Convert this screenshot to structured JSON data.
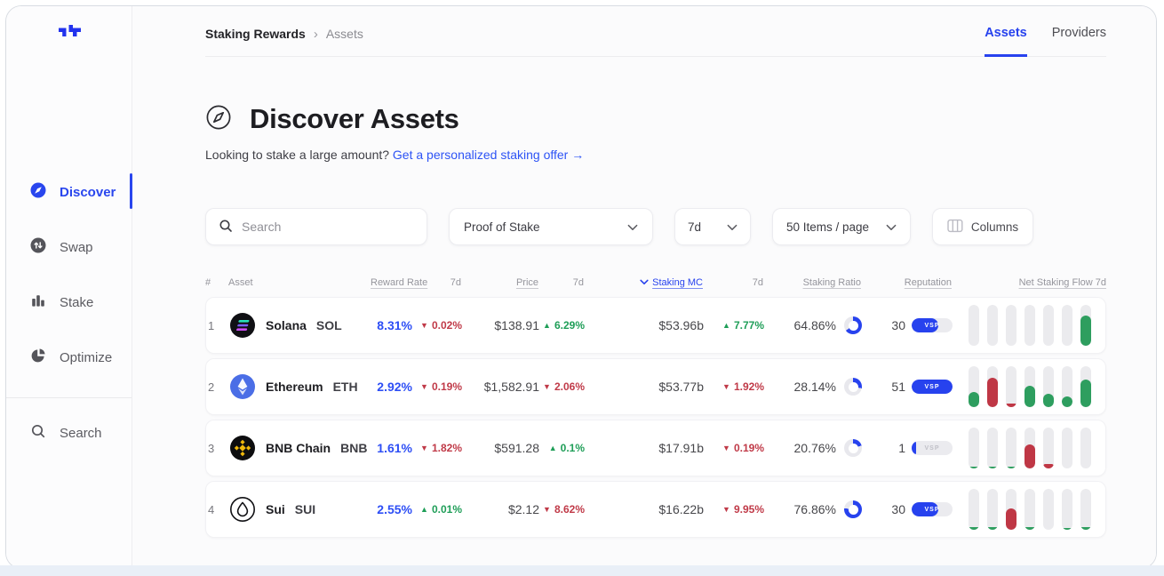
{
  "brand": {
    "logo_icon": "staking-rewards-logo",
    "accent": "#2742ee"
  },
  "colors": {
    "accent": "#2742ee",
    "positive": "#2e9e5f",
    "negative": "#bf3745",
    "ring_track": "#e8e8ed",
    "link": "#2d53f5"
  },
  "sidebar": {
    "items": [
      {
        "label": "Discover",
        "icon": "compass-icon",
        "active": true
      },
      {
        "label": "Swap",
        "icon": "swap-icon",
        "active": false
      },
      {
        "label": "Stake",
        "icon": "stake-icon",
        "active": false
      },
      {
        "label": "Optimize",
        "icon": "optimize-icon",
        "active": false
      },
      {
        "label": "Search",
        "icon": "search-icon",
        "active": false
      }
    ]
  },
  "header": {
    "breadcrumb": {
      "root": "Staking Rewards",
      "separator": "›",
      "current": "Assets"
    },
    "tabs": [
      {
        "label": "Assets",
        "active": true
      },
      {
        "label": "Providers",
        "active": false
      }
    ]
  },
  "hero": {
    "icon": "compass-outline-icon",
    "title": "Discover Assets",
    "subtitle": "Looking to stake a large amount?",
    "subtitle_link": "Get a personalized staking offer →"
  },
  "filters": {
    "search": {
      "placeholder": "Search",
      "icon": "search-icon"
    },
    "protocol_select": {
      "value": "Proof of Stake"
    },
    "period_select": {
      "value": "7d"
    },
    "page_size_select": {
      "value": "50 Items / page"
    },
    "columns_button": {
      "label": "Columns",
      "icon": "columns-icon"
    }
  },
  "table": {
    "sorted_by": "Staking MC",
    "headers": {
      "rank": "#",
      "asset": "Asset",
      "reward_rate": "Reward Rate",
      "reward_rate_7d": "7d",
      "price": "Price",
      "price_7d": "7d",
      "staking_mc": "Staking MC",
      "staking_mc_7d": "7d",
      "staking_ratio": "Staking Ratio",
      "reputation": "Reputation",
      "net_staking_flow": "Net Staking Flow 7d"
    },
    "rows": [
      {
        "rank": "1",
        "name": "Solana",
        "symbol": "SOL",
        "token_icon": "solana-icon",
        "reward_rate": "8.31%",
        "reward_rate_7d": {
          "dir": "down",
          "value": "0.02%"
        },
        "price": "$138.91",
        "price_7d": {
          "dir": "up",
          "value": "6.29%"
        },
        "staking_mc": "$53.96b",
        "staking_mc_7d": {
          "dir": "up",
          "value": "7.77%"
        },
        "staking_ratio": "64.86%",
        "staking_ratio_pct": 64.86,
        "reputation": "30",
        "reputation_badge": {
          "text": "VSP",
          "fill_pct": 65
        },
        "flows": [
          {
            "color": "none",
            "fill": 0
          },
          {
            "color": "none",
            "fill": 0
          },
          {
            "color": "none",
            "fill": 0
          },
          {
            "color": "none",
            "fill": 0
          },
          {
            "color": "none",
            "fill": 0
          },
          {
            "color": "none",
            "fill": 0
          },
          {
            "color": "green",
            "fill": 75
          }
        ]
      },
      {
        "rank": "2",
        "name": "Ethereum",
        "symbol": "ETH",
        "token_icon": "ethereum-icon",
        "reward_rate": "2.92%",
        "reward_rate_7d": {
          "dir": "down",
          "value": "0.19%"
        },
        "price": "$1,582.91",
        "price_7d": {
          "dir": "down",
          "value": "2.06%"
        },
        "staking_mc": "$53.77b",
        "staking_mc_7d": {
          "dir": "down",
          "value": "1.92%"
        },
        "staking_ratio": "28.14%",
        "staking_ratio_pct": 28.14,
        "reputation": "51",
        "reputation_badge": {
          "text": "VSP",
          "fill_pct": 100
        },
        "flows": [
          {
            "color": "green",
            "fill": 38
          },
          {
            "color": "red",
            "fill": 72
          },
          {
            "color": "red",
            "fill": 8
          },
          {
            "color": "green",
            "fill": 52
          },
          {
            "color": "green",
            "fill": 32
          },
          {
            "color": "green",
            "fill": 27
          },
          {
            "color": "green",
            "fill": 68
          }
        ]
      },
      {
        "rank": "3",
        "name": "BNB Chain",
        "symbol": "BNB",
        "token_icon": "bnb-chain-icon",
        "reward_rate": "1.61%",
        "reward_rate_7d": {
          "dir": "down",
          "value": "1.82%"
        },
        "price": "$591.28",
        "price_7d": {
          "dir": "up",
          "value": "0.1%"
        },
        "staking_mc": "$17.91b",
        "staking_mc_7d": {
          "dir": "down",
          "value": "0.19%"
        },
        "staking_ratio": "20.76%",
        "staking_ratio_pct": 20.76,
        "reputation": "1",
        "reputation_badge": {
          "text": "VSP",
          "fill_pct": 10
        },
        "flows": [
          {
            "color": "green",
            "fill": 4
          },
          {
            "color": "green",
            "fill": 4
          },
          {
            "color": "green",
            "fill": 4
          },
          {
            "color": "red",
            "fill": 58
          },
          {
            "color": "red",
            "fill": 10
          },
          {
            "color": "none",
            "fill": 0
          },
          {
            "color": "none",
            "fill": 0
          }
        ]
      },
      {
        "rank": "4",
        "name": "Sui",
        "symbol": "SUI",
        "token_icon": "sui-icon",
        "reward_rate": "2.55%",
        "reward_rate_7d": {
          "dir": "up",
          "value": "0.01%"
        },
        "price": "$2.12",
        "price_7d": {
          "dir": "down",
          "value": "8.62%"
        },
        "staking_mc": "$16.22b",
        "staking_mc_7d": {
          "dir": "down",
          "value": "9.95%"
        },
        "staking_ratio": "76.86%",
        "staking_ratio_pct": 76.86,
        "reputation": "30",
        "reputation_badge": {
          "text": "VSP",
          "fill_pct": 65
        },
        "flows": [
          {
            "color": "green",
            "fill": 6
          },
          {
            "color": "green",
            "fill": 6
          },
          {
            "color": "red",
            "fill": 52
          },
          {
            "color": "green",
            "fill": 6
          },
          {
            "color": "none",
            "fill": 0
          },
          {
            "color": "green",
            "fill": 5
          },
          {
            "color": "green",
            "fill": 6
          }
        ]
      }
    ]
  }
}
